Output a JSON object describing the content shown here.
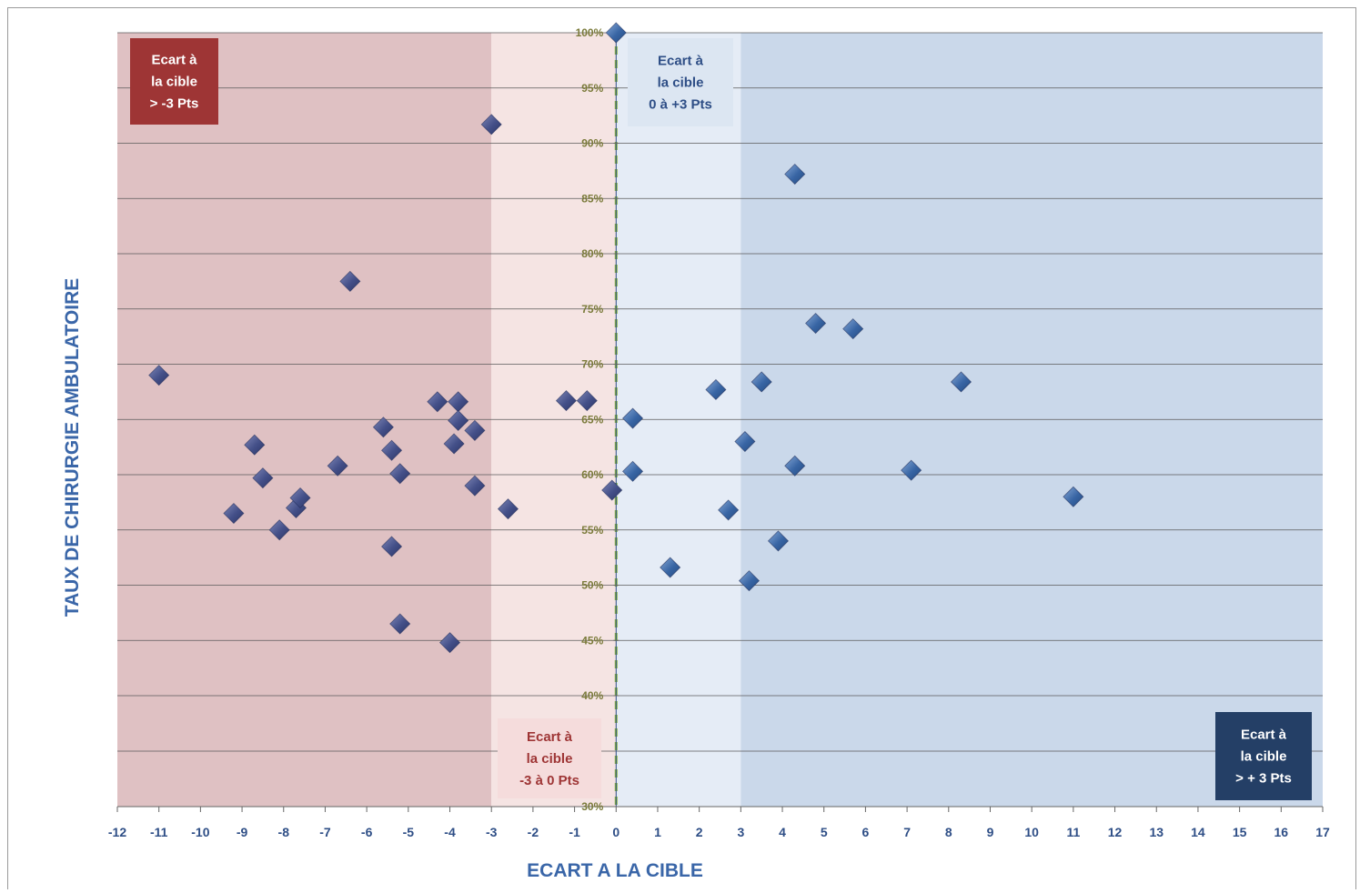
{
  "chart_data": {
    "type": "scatter",
    "xlabel": "ECART A LA CIBLE",
    "ylabel": "TAUX DE CHIRURGIE AMBULATOIRE",
    "xlim": [
      -12,
      17
    ],
    "ylim": [
      30,
      100
    ],
    "y_axis_note": "axis break between 30% and 40%",
    "x_ticks": [
      -12,
      -11,
      -10,
      -9,
      -8,
      -7,
      -6,
      -5,
      -4,
      -3,
      -2,
      -1,
      0,
      1,
      2,
      3,
      4,
      5,
      6,
      7,
      8,
      9,
      10,
      11,
      12,
      13,
      14,
      15,
      16,
      17
    ],
    "y_ticks": [
      {
        "value": 100,
        "label": "100%"
      },
      {
        "value": 95,
        "label": "95%"
      },
      {
        "value": 90,
        "label": "90%"
      },
      {
        "value": 85,
        "label": "85%"
      },
      {
        "value": 80,
        "label": "80%"
      },
      {
        "value": 75,
        "label": "75%"
      },
      {
        "value": 70,
        "label": "70%"
      },
      {
        "value": 65,
        "label": "65%"
      },
      {
        "value": 60,
        "label": "60%"
      },
      {
        "value": 55,
        "label": "55%"
      },
      {
        "value": 50,
        "label": "50%"
      },
      {
        "value": 45,
        "label": "45%"
      },
      {
        "value": 40,
        "label": "40%"
      },
      {
        "value": 30,
        "label": "30%"
      }
    ],
    "grid": true,
    "zones": [
      {
        "from": -12,
        "to": -3,
        "color": "#dfc1c3"
      },
      {
        "from": -3,
        "to": 0,
        "color": "#f5e4e3"
      },
      {
        "from": 0,
        "to": 3,
        "color": "#e5ecf6"
      },
      {
        "from": 3,
        "to": 17,
        "color": "#cad8ea"
      }
    ],
    "annotations": [
      {
        "lines": [
          "Ecart à",
          "la cible",
          "> -3 Pts"
        ],
        "bg": "#9e3535",
        "fg": "#ffffff",
        "position": "top-left"
      },
      {
        "lines": [
          "Ecart à",
          "la cible",
          "-3 à 0 Pts"
        ],
        "bg": "#f5dcdc",
        "fg": "#9e3535",
        "position": "bottom"
      },
      {
        "lines": [
          "Ecart à",
          "la cible",
          "0 à +3 Pts"
        ],
        "bg": "#dce6f2",
        "fg": "#2e4e86",
        "position": "top"
      },
      {
        "lines": [
          "Ecart à",
          "la cible",
          "> + 3 Pts"
        ],
        "bg": "#243f66",
        "fg": "#ffffff",
        "position": "bottom-right"
      }
    ],
    "points": [
      {
        "x": -11,
        "y": 69
      },
      {
        "x": -9.2,
        "y": 56.5
      },
      {
        "x": -8.7,
        "y": 62.7
      },
      {
        "x": -8.5,
        "y": 59.7
      },
      {
        "x": -8.1,
        "y": 55
      },
      {
        "x": -7.7,
        "y": 57
      },
      {
        "x": -7.6,
        "y": 57.9
      },
      {
        "x": -6.7,
        "y": 60.8
      },
      {
        "x": -6.4,
        "y": 77.5
      },
      {
        "x": -5.6,
        "y": 64.3
      },
      {
        "x": -5.4,
        "y": 62.2
      },
      {
        "x": -5.4,
        "y": 53.5
      },
      {
        "x": -5.2,
        "y": 60.1
      },
      {
        "x": -5.2,
        "y": 46.5
      },
      {
        "x": -4.3,
        "y": 66.6
      },
      {
        "x": -4.0,
        "y": 44.8
      },
      {
        "x": -3.9,
        "y": 62.8
      },
      {
        "x": -3.8,
        "y": 66.6
      },
      {
        "x": -3.8,
        "y": 64.9
      },
      {
        "x": -3.4,
        "y": 64
      },
      {
        "x": -3.4,
        "y": 59
      },
      {
        "x": -3.0,
        "y": 91.7
      },
      {
        "x": -2.6,
        "y": 56.9
      },
      {
        "x": -1.2,
        "y": 66.7
      },
      {
        "x": -0.7,
        "y": 66.7
      },
      {
        "x": -0.1,
        "y": 58.6
      },
      {
        "x": 0,
        "y": 100
      },
      {
        "x": 0.4,
        "y": 65.1
      },
      {
        "x": 0.4,
        "y": 60.3
      },
      {
        "x": 1.3,
        "y": 51.6
      },
      {
        "x": 2.4,
        "y": 67.7
      },
      {
        "x": 2.7,
        "y": 56.8
      },
      {
        "x": 3.1,
        "y": 63
      },
      {
        "x": 3.2,
        "y": 50.4
      },
      {
        "x": 3.5,
        "y": 68.4
      },
      {
        "x": 3.9,
        "y": 54
      },
      {
        "x": 4.3,
        "y": 87.2
      },
      {
        "x": 4.3,
        "y": 60.8
      },
      {
        "x": 4.8,
        "y": 73.7
      },
      {
        "x": 5.7,
        "y": 73.2
      },
      {
        "x": 7.1,
        "y": 60.4
      },
      {
        "x": 8.3,
        "y": 68.4
      },
      {
        "x": 11,
        "y": 58
      }
    ],
    "point_colors": {
      "negative": "#3e4a80",
      "positive": "#3462a0"
    },
    "target_line_color": "#8ab443"
  }
}
